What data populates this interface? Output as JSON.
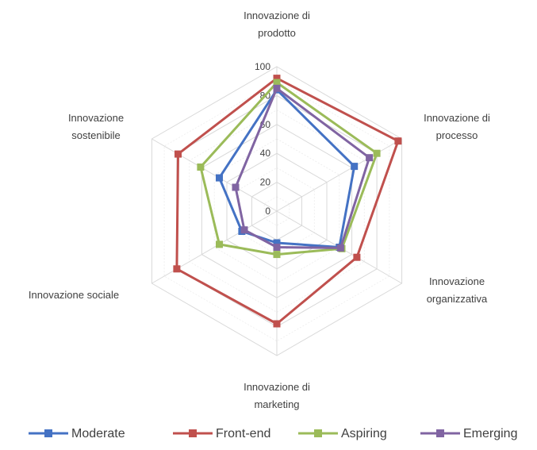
{
  "chart_data": {
    "type": "radar",
    "title": "",
    "axes": [
      "Innovazione di prodotto",
      "Innovazione di processo",
      "Innovazione organizzativa",
      "Innovazione di marketing",
      "Innovazione sociale",
      "Innovazione sostenibile"
    ],
    "axis_label_lines": [
      [
        "Innovazione di",
        "prodotto"
      ],
      [
        "Innovazione di",
        "processo"
      ],
      [
        "Innovazione",
        "organizzativa"
      ],
      [
        "Innovazione di",
        "marketing"
      ],
      [
        "Innovazione sociale"
      ],
      [
        "Innovazione",
        "sostenibile"
      ]
    ],
    "r_range": [
      0,
      100
    ],
    "ticks": [
      0,
      20,
      40,
      60,
      80,
      100
    ],
    "grid": true,
    "legend_position": "bottom",
    "series": [
      {
        "name": "Moderate",
        "color": "#4472C4",
        "values": [
          84,
          62,
          50,
          22,
          28,
          46
        ]
      },
      {
        "name": "Front-end",
        "color": "#C0504D",
        "values": [
          92,
          97,
          64,
          78,
          80,
          79
        ]
      },
      {
        "name": "Aspiring",
        "color": "#9BBB59",
        "values": [
          89,
          80,
          52,
          30,
          46,
          61
        ]
      },
      {
        "name": "Emerging",
        "color": "#8064A2",
        "values": [
          85,
          74,
          51,
          25,
          26,
          33
        ]
      }
    ]
  }
}
